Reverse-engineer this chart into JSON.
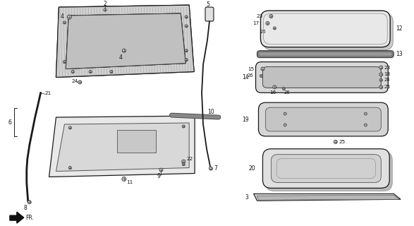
{
  "bg_color": "#ffffff",
  "line_color": "#1a1a1a",
  "hatch_color": "#888888",
  "gray_fill": "#d8d8d8",
  "dark_fill": "#555555",
  "frame_hatch_color": "#aaaaaa"
}
